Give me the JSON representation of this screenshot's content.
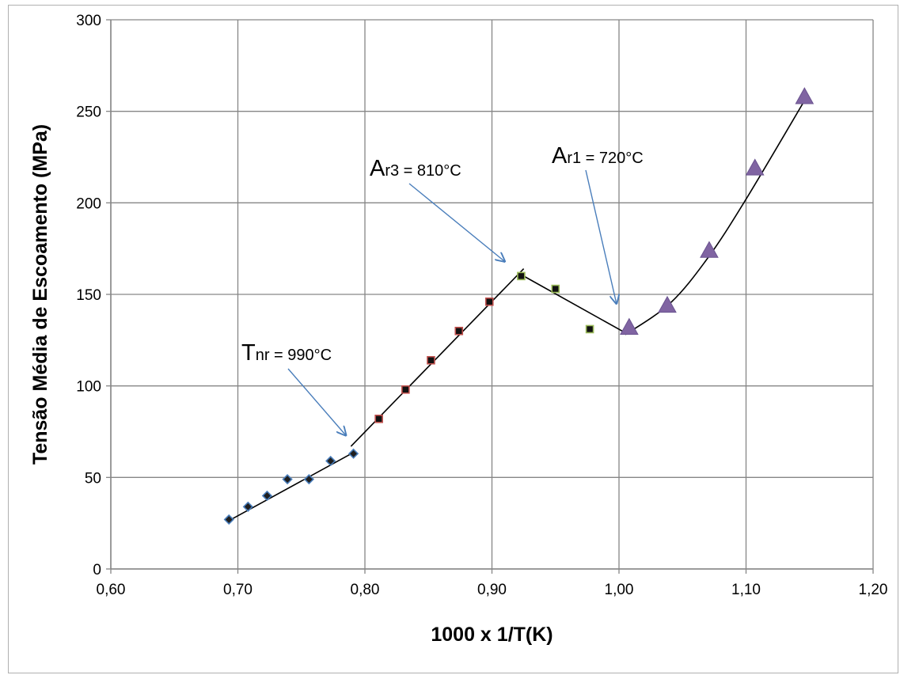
{
  "chart_data": {
    "type": "scatter",
    "xlabel": "1000 x 1/T(K)",
    "ylabel": "Tensão Média de Escoamento (MPa)",
    "xlim": [
      0.6,
      1.2
    ],
    "ylim": [
      0,
      300
    ],
    "x_ticks": [
      "0,60",
      "0,70",
      "0,80",
      "0,90",
      "1,00",
      "1,10",
      "1,20"
    ],
    "y_ticks": [
      "0",
      "50",
      "100",
      "150",
      "200",
      "250",
      "300"
    ],
    "grid": true,
    "legend": "none",
    "series": [
      {
        "marker": "diamond",
        "color": "#4a7ebb",
        "x": [
          0.693,
          0.708,
          0.723,
          0.739,
          0.756,
          0.773,
          0.791
        ],
        "y": [
          27,
          34,
          40,
          49,
          49,
          59,
          63
        ]
      },
      {
        "marker": "square",
        "color": "#c0504d",
        "x": [
          0.811,
          0.832,
          0.852,
          0.874,
          0.898
        ],
        "y": [
          82,
          98,
          114,
          130,
          146
        ]
      },
      {
        "marker": "square",
        "color": "#9bbb59",
        "x": [
          0.923,
          0.95,
          0.977
        ],
        "y": [
          160,
          153,
          131
        ]
      },
      {
        "marker": "triangle",
        "color": "#8064a2",
        "x": [
          1.008,
          1.038,
          1.071,
          1.107,
          1.146
        ],
        "y": [
          132,
          144,
          174,
          219,
          258
        ]
      }
    ],
    "trend_lines": [
      {
        "x": [
          0.692,
          0.792
        ],
        "y": [
          26,
          64
        ]
      },
      {
        "x": [
          0.789,
          0.925
        ],
        "y": [
          67,
          164
        ]
      },
      {
        "x": [
          0.925,
          1.005
        ],
        "y": [
          160,
          129
        ]
      },
      {
        "x": [
          1.005,
          1.04,
          1.07,
          1.1,
          1.147
        ],
        "y": [
          128,
          145,
          170,
          202,
          257
        ]
      }
    ],
    "annotations": [
      {
        "main": "T",
        "sub": "nr = 990°C",
        "arrow_to": [
          0.785,
          73
        ]
      },
      {
        "main": "A",
        "sub": "r3 = 810°C",
        "arrow_to": [
          0.91,
          168
        ]
      },
      {
        "main": "A",
        "sub": "r1 = 720°C",
        "arrow_to": [
          0.998,
          145
        ]
      }
    ]
  }
}
